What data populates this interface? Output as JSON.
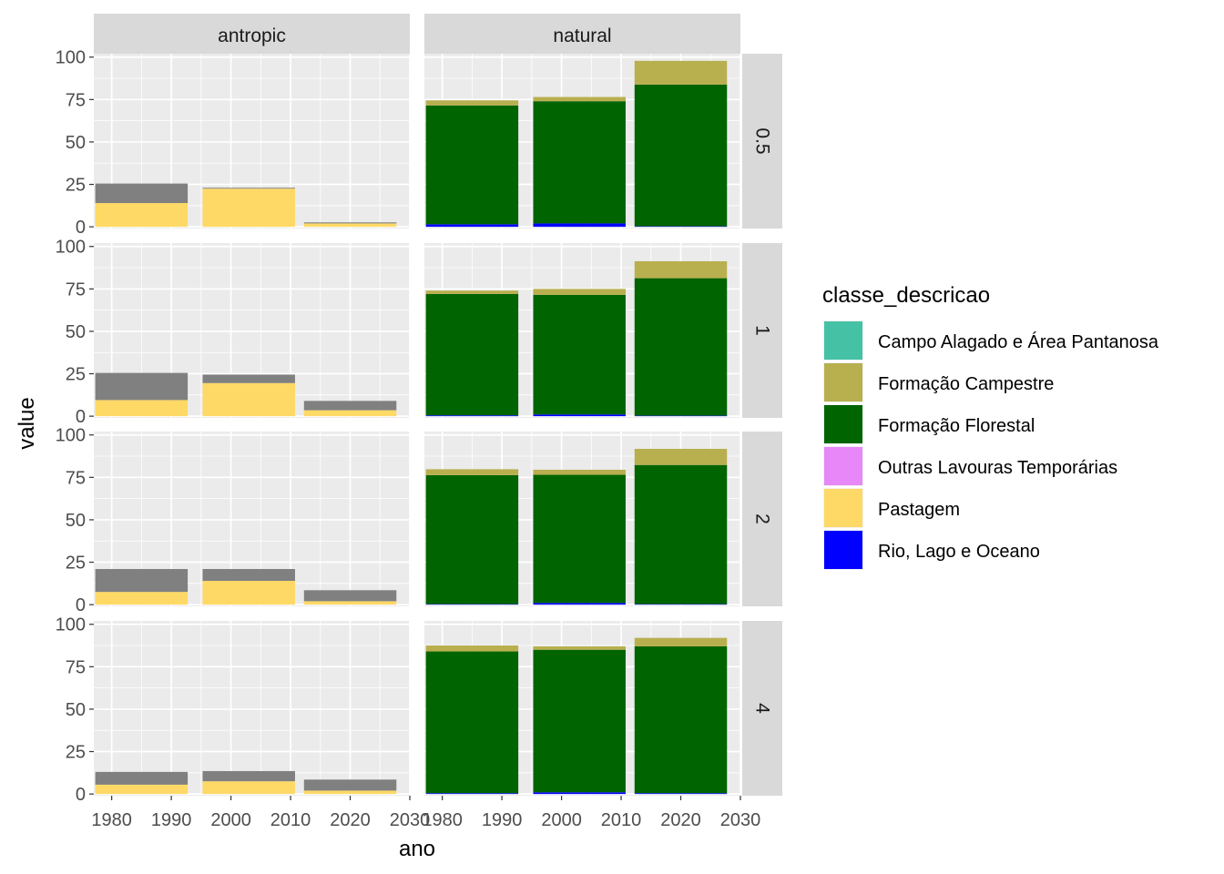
{
  "chart_data": {
    "type": "bar",
    "stacked": true,
    "xlabel": "ano",
    "ylabel": "value",
    "x_breaks": [
      1980,
      1990,
      2000,
      2010,
      2020,
      2030
    ],
    "x_ticklabels": [
      "1980",
      "1990",
      "2000",
      "2010",
      "2020",
      "2030"
    ],
    "xlim": [
      1977,
      2030
    ],
    "y_breaks": [
      0,
      25,
      50,
      75,
      100
    ],
    "y_ticklabels": [
      "0",
      "25",
      "50",
      "75",
      "100"
    ],
    "ylim": [
      -1,
      102
    ],
    "grid": true,
    "legend_position": "right",
    "legend": {
      "title": "classe_descricao",
      "entries": [
        {
          "label": "Campo Alagado e Área Pantanosa",
          "color": "#45C2A5"
        },
        {
          "label": "Formação Campestre",
          "color": "#B8AF4F"
        },
        {
          "label": "Formação Florestal",
          "color": "#006400"
        },
        {
          "label": "Outras Lavouras Temporárias",
          "color": "#E787F8"
        },
        {
          "label": "Pastagem",
          "color": "#FFD966"
        },
        {
          "label": "Rio, Lago e Oceano",
          "color": "#0000FF"
        }
      ]
    },
    "other_color": "#808080",
    "col_facets": [
      "antropic",
      "natural"
    ],
    "row_facets": [
      "0.5",
      "1",
      "2",
      "4"
    ],
    "bar_centers": [
      1985,
      2003,
      2020
    ],
    "bar_width": 15.5,
    "panels": [
      {
        "col": "antropic",
        "row": "0.5",
        "bars": [
          {
            "x": 1985,
            "stack": [
              {
                "color": "#FFD966",
                "value": 14
              },
              {
                "color": "#808080",
                "value": 11.5
              }
            ]
          },
          {
            "x": 2003,
            "stack": [
              {
                "color": "#FFD966",
                "value": 22.5
              },
              {
                "color": "#808080",
                "value": 0.5
              }
            ]
          },
          {
            "x": 2020,
            "stack": [
              {
                "color": "#FFD966",
                "value": 2
              },
              {
                "color": "#808080",
                "value": 0.6
              }
            ]
          }
        ]
      },
      {
        "col": "natural",
        "row": "0.5",
        "bars": [
          {
            "x": 1985,
            "stack": [
              {
                "color": "#0000FF",
                "value": 1.5
              },
              {
                "color": "#006400",
                "value": 70
              },
              {
                "color": "#B8AF4F",
                "value": 3
              }
            ]
          },
          {
            "x": 2003,
            "stack": [
              {
                "color": "#0000FF",
                "value": 2
              },
              {
                "color": "#006400",
                "value": 72
              },
              {
                "color": "#B8AF4F",
                "value": 2.5
              }
            ]
          },
          {
            "x": 2020,
            "stack": [
              {
                "color": "#0000FF",
                "value": 0.3
              },
              {
                "color": "#006400",
                "value": 83.5
              },
              {
                "color": "#B8AF4F",
                "value": 14
              }
            ]
          }
        ]
      },
      {
        "col": "antropic",
        "row": "1",
        "bars": [
          {
            "x": 1985,
            "stack": [
              {
                "color": "#FFD966",
                "value": 9.5
              },
              {
                "color": "#808080",
                "value": 16
              }
            ]
          },
          {
            "x": 2003,
            "stack": [
              {
                "color": "#FFD966",
                "value": 19.5
              },
              {
                "color": "#808080",
                "value": 5
              }
            ]
          },
          {
            "x": 2020,
            "stack": [
              {
                "color": "#FFD966",
                "value": 3.5
              },
              {
                "color": "#808080",
                "value": 5.5
              }
            ]
          }
        ]
      },
      {
        "col": "natural",
        "row": "1",
        "bars": [
          {
            "x": 1985,
            "stack": [
              {
                "color": "#0000FF",
                "value": 0.5
              },
              {
                "color": "#006400",
                "value": 71.5
              },
              {
                "color": "#B8AF4F",
                "value": 2
              }
            ]
          },
          {
            "x": 2003,
            "stack": [
              {
                "color": "#0000FF",
                "value": 1
              },
              {
                "color": "#006400",
                "value": 70.5
              },
              {
                "color": "#B8AF4F",
                "value": 3.5
              }
            ]
          },
          {
            "x": 2020,
            "stack": [
              {
                "color": "#0000FF",
                "value": 0.3
              },
              {
                "color": "#006400",
                "value": 81
              },
              {
                "color": "#B8AF4F",
                "value": 10
              }
            ]
          }
        ]
      },
      {
        "col": "antropic",
        "row": "2",
        "bars": [
          {
            "x": 1985,
            "stack": [
              {
                "color": "#FFD966",
                "value": 7.5
              },
              {
                "color": "#808080",
                "value": 13.5
              }
            ]
          },
          {
            "x": 2003,
            "stack": [
              {
                "color": "#FFD966",
                "value": 14
              },
              {
                "color": "#808080",
                "value": 7
              }
            ]
          },
          {
            "x": 2020,
            "stack": [
              {
                "color": "#FFD966",
                "value": 2
              },
              {
                "color": "#808080",
                "value": 6.5
              }
            ]
          }
        ]
      },
      {
        "col": "natural",
        "row": "2",
        "bars": [
          {
            "x": 1985,
            "stack": [
              {
                "color": "#0000FF",
                "value": 0.3
              },
              {
                "color": "#006400",
                "value": 76
              },
              {
                "color": "#B8AF4F",
                "value": 3.5
              }
            ]
          },
          {
            "x": 2003,
            "stack": [
              {
                "color": "#0000FF",
                "value": 1
              },
              {
                "color": "#006400",
                "value": 75.5
              },
              {
                "color": "#B8AF4F",
                "value": 3
              }
            ]
          },
          {
            "x": 2020,
            "stack": [
              {
                "color": "#0000FF",
                "value": 0.3
              },
              {
                "color": "#006400",
                "value": 82
              },
              {
                "color": "#B8AF4F",
                "value": 9.5
              }
            ]
          }
        ]
      },
      {
        "col": "antropic",
        "row": "4",
        "bars": [
          {
            "x": 1985,
            "stack": [
              {
                "color": "#FFD966",
                "value": 5.5
              },
              {
                "color": "#808080",
                "value": 7.5
              }
            ]
          },
          {
            "x": 2003,
            "stack": [
              {
                "color": "#FFD966",
                "value": 7.5
              },
              {
                "color": "#808080",
                "value": 6
              }
            ]
          },
          {
            "x": 2020,
            "stack": [
              {
                "color": "#FFD966",
                "value": 2
              },
              {
                "color": "#808080",
                "value": 6.5
              }
            ]
          }
        ]
      },
      {
        "col": "natural",
        "row": "4",
        "bars": [
          {
            "x": 1985,
            "stack": [
              {
                "color": "#0000FF",
                "value": 0.5
              },
              {
                "color": "#006400",
                "value": 83.5
              },
              {
                "color": "#B8AF4F",
                "value": 3.5
              }
            ]
          },
          {
            "x": 2003,
            "stack": [
              {
                "color": "#0000FF",
                "value": 1
              },
              {
                "color": "#006400",
                "value": 84
              },
              {
                "color": "#B8AF4F",
                "value": 2
              }
            ]
          },
          {
            "x": 2020,
            "stack": [
              {
                "color": "#0000FF",
                "value": 0.5
              },
              {
                "color": "#006400",
                "value": 86.5
              },
              {
                "color": "#B8AF4F",
                "value": 5
              }
            ]
          }
        ]
      }
    ]
  }
}
